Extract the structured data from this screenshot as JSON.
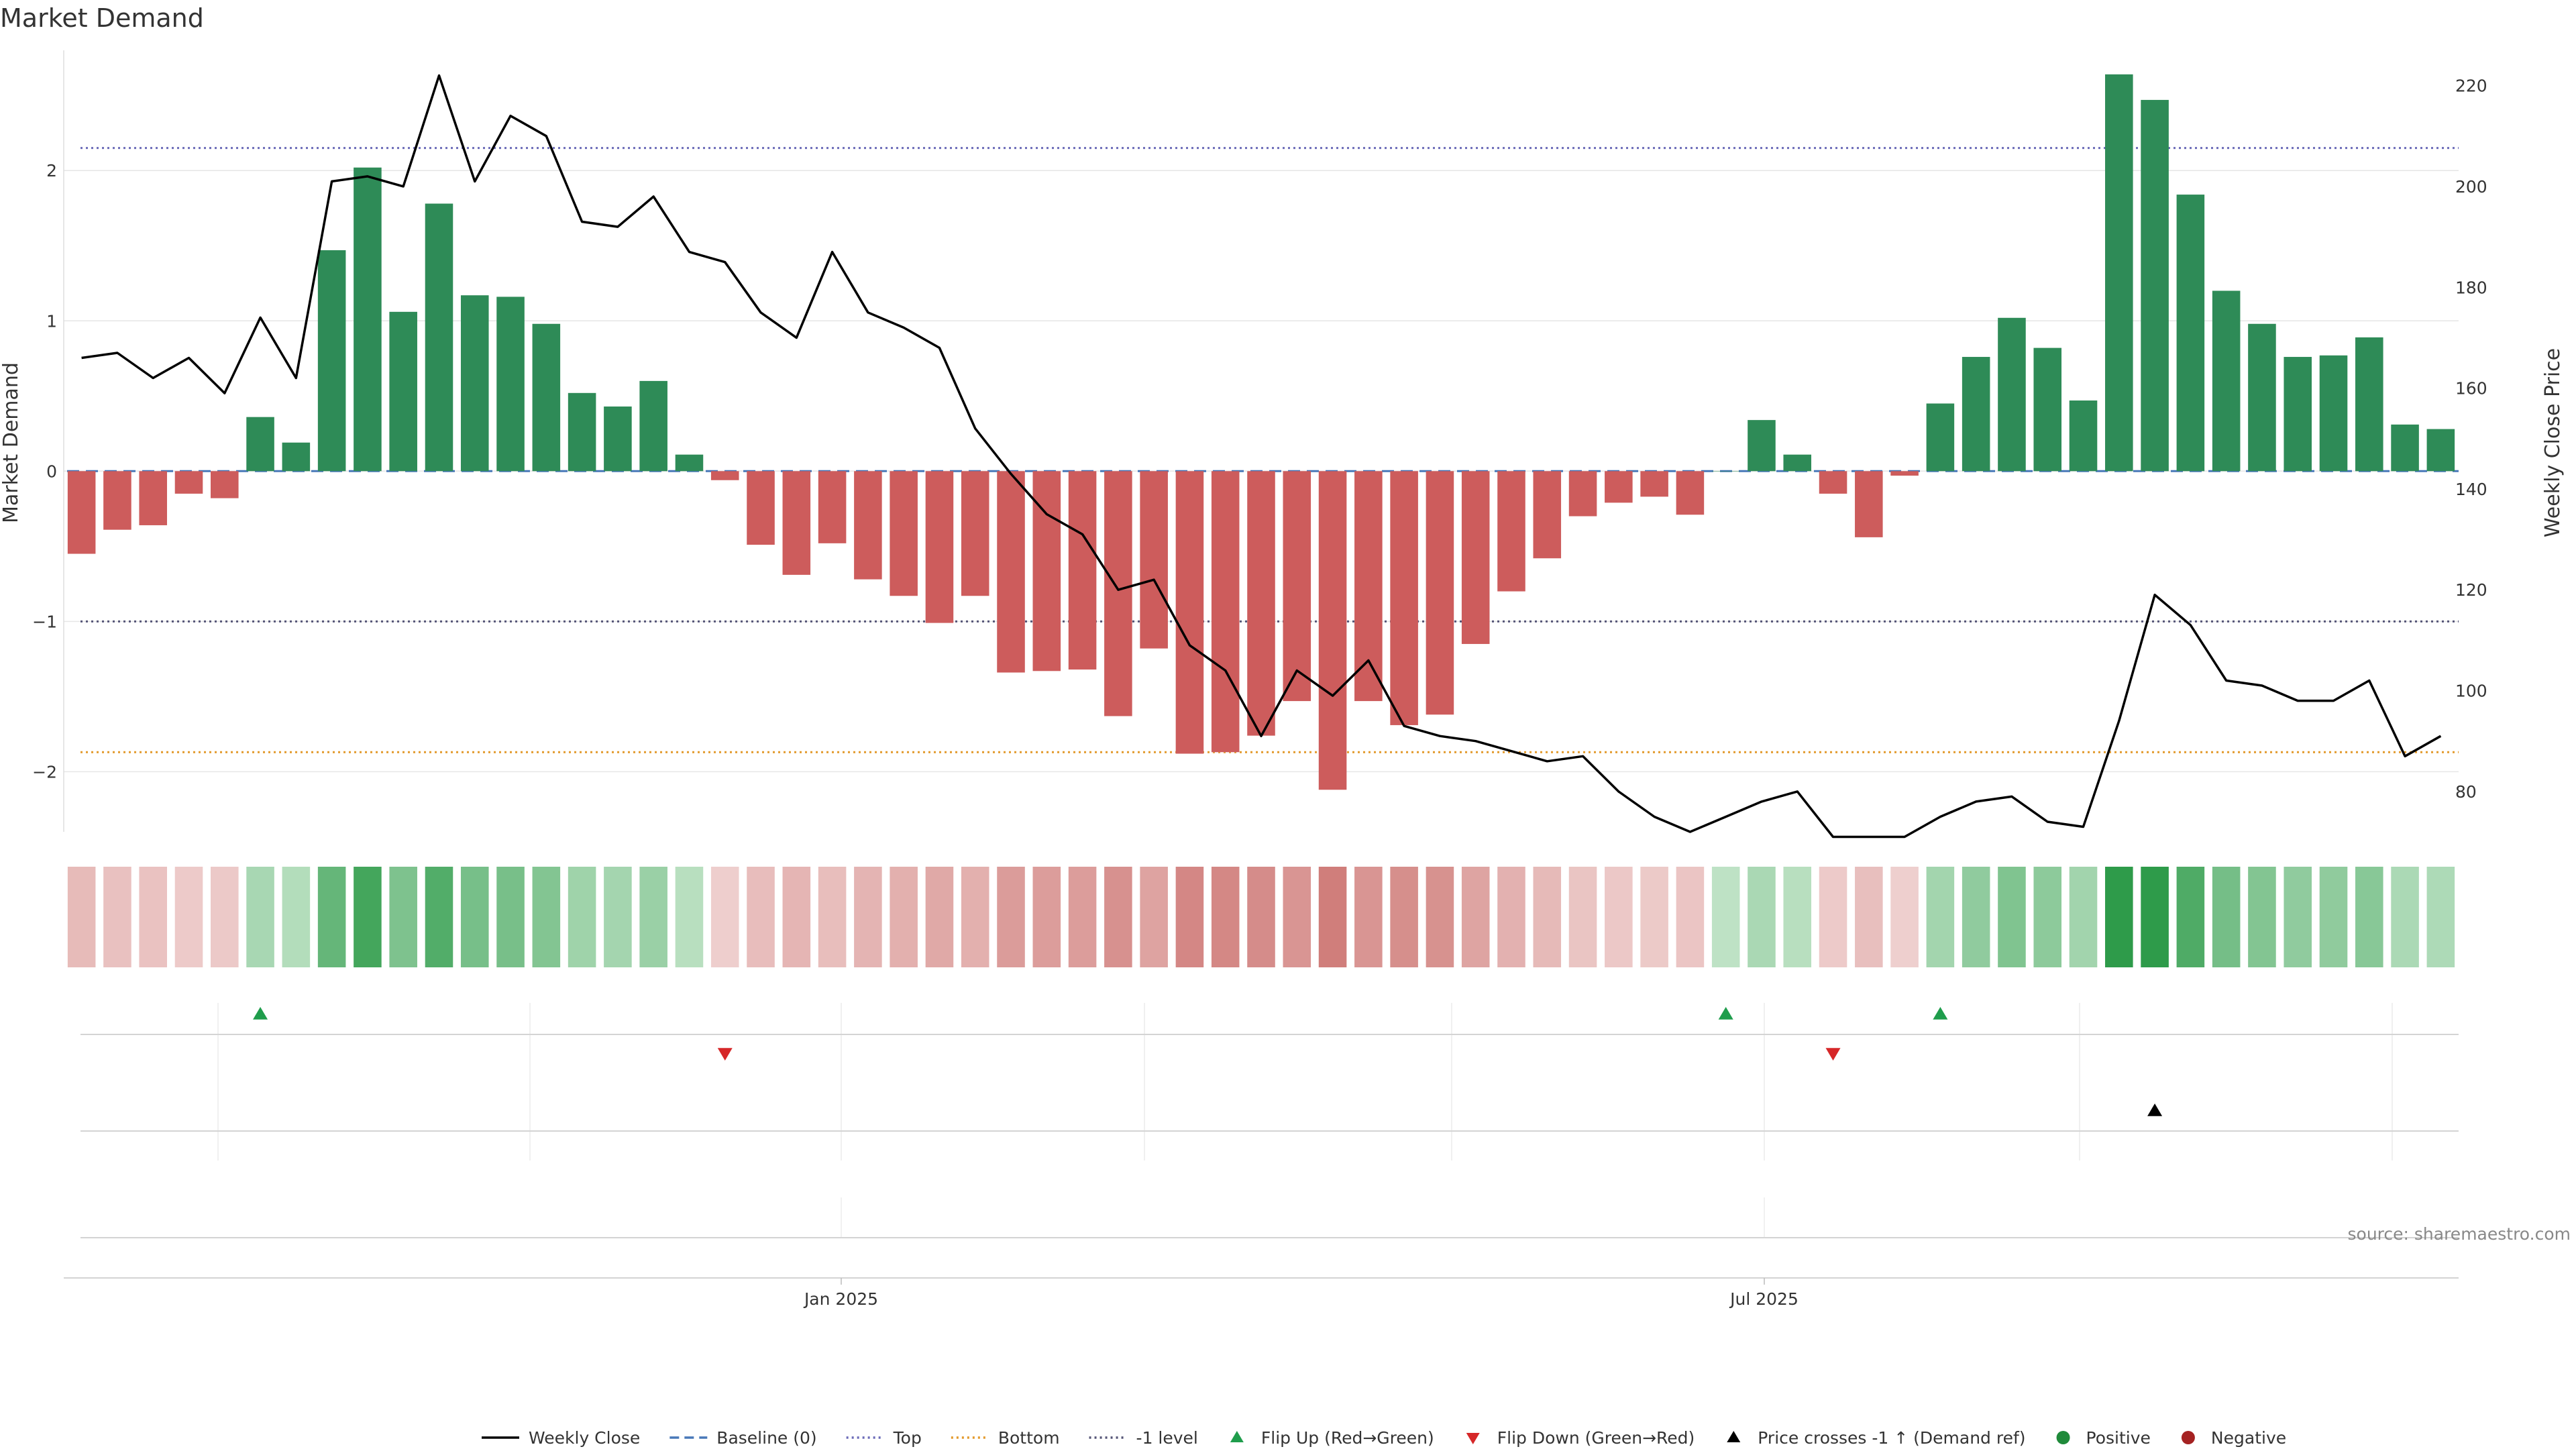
{
  "chart_data": {
    "type": "bar",
    "title": "Market Demand",
    "ylabel_left": "Market Demand",
    "ylabel_right": "Weekly Close Price",
    "source": "source: sharemaestro.com",
    "x_ticks": [
      "Jan 2025",
      "Jul 2025"
    ],
    "ylim_left": [
      -2.4,
      2.8
    ],
    "ylim_right": [
      72,
      227
    ],
    "yticks_left": [
      -2,
      -1,
      0,
      1,
      2
    ],
    "yticks_left_labels": [
      "−2",
      "−1",
      "0",
      "1",
      "2"
    ],
    "yticks_right": [
      80,
      100,
      120,
      140,
      160,
      180,
      200,
      220
    ],
    "reference_lines": {
      "baseline": 0,
      "top": 2.15,
      "bottom": -1.87,
      "minus_one": -1
    },
    "demand": [
      -0.55,
      -0.39,
      -0.36,
      -0.15,
      -0.18,
      0.36,
      0.19,
      1.47,
      2.02,
      1.06,
      1.78,
      1.17,
      1.16,
      0.98,
      0.52,
      0.43,
      0.6,
      0.11,
      -0.06,
      -0.49,
      -0.69,
      -0.48,
      -0.72,
      -0.83,
      -1.01,
      -0.83,
      -1.34,
      -1.33,
      -1.32,
      -1.63,
      -1.18,
      -1.88,
      -1.87,
      -1.76,
      -1.53,
      -2.12,
      -1.53,
      -1.69,
      -1.62,
      -1.15,
      -0.8,
      -0.58,
      -0.3,
      -0.21,
      -0.17,
      -0.29,
      0,
      0.34,
      0.11,
      -0.15,
      -0.44,
      -0.03,
      0.45,
      0.76,
      1.02,
      0.82,
      0.47,
      2.64,
      2.47,
      1.84,
      1.2,
      0.98,
      0.76,
      0.77,
      0.89,
      0.31,
      0.28
    ],
    "weekly_close": [
      166,
      167,
      162,
      166,
      159,
      174,
      162,
      201,
      202,
      200,
      222,
      201,
      214,
      210,
      193,
      192,
      198,
      187,
      185,
      175,
      170,
      187,
      175,
      172,
      168,
      152,
      143,
      135,
      131,
      120,
      122,
      109,
      104,
      91,
      104,
      99,
      106,
      93,
      91,
      90,
      88,
      86,
      87,
      80,
      75,
      72,
      75,
      78,
      80,
      71,
      71,
      71,
      75,
      78,
      79,
      74,
      73,
      94,
      119,
      113,
      102,
      101,
      98,
      98,
      102,
      87,
      91
    ],
    "flip_up_indices": [
      5,
      46,
      52
    ],
    "flip_down_indices": [
      18,
      49
    ],
    "price_cross_indices": [
      58
    ],
    "legend": [
      {
        "label": "Weekly Close",
        "marker": "line",
        "color": "#000000"
      },
      {
        "label": "Baseline (0)",
        "marker": "dashed",
        "color": "#4878b8"
      },
      {
        "label": "Top",
        "marker": "dotted",
        "color": "#6b6bb8"
      },
      {
        "label": "Bottom",
        "marker": "dotted",
        "color": "#e39a2c"
      },
      {
        "label": "-1 level",
        "marker": "dotted",
        "color": "#555577"
      },
      {
        "label": "Flip Up (Red→Green)",
        "marker": "triangle-up",
        "color": "#1f9d4c"
      },
      {
        "label": "Flip Down (Green→Red)",
        "marker": "triangle-down",
        "color": "#d62728"
      },
      {
        "label": "Price crosses -1 ↑ (Demand ref)",
        "marker": "triangle-up",
        "color": "#000000"
      },
      {
        "label": "Positive",
        "marker": "circle",
        "color": "#1f8a3a"
      },
      {
        "label": "Negative",
        "marker": "circle",
        "color": "#a52222"
      }
    ],
    "colors": {
      "positive_bar": "#2e8b57",
      "negative_bar": "#cd5c5c",
      "close_line": "#000000",
      "grid": "#e6e6e6"
    }
  }
}
